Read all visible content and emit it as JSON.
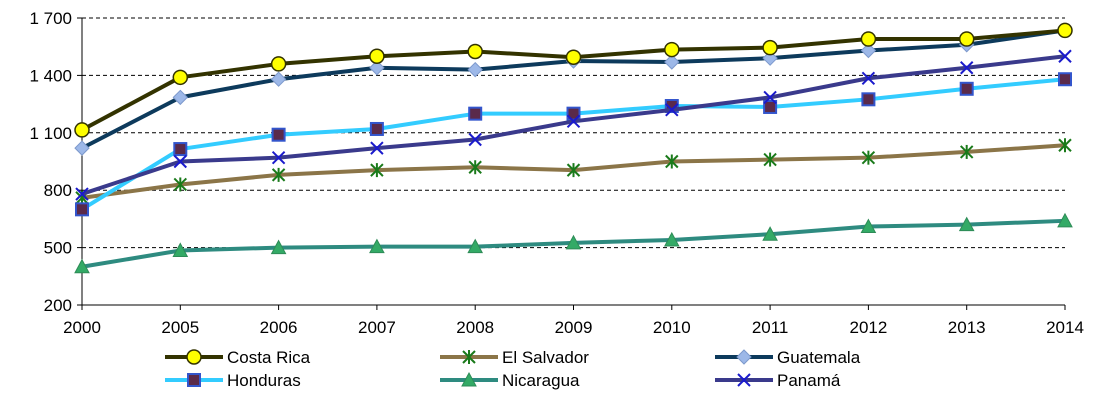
{
  "chart_data": {
    "type": "line",
    "title": "",
    "xlabel": "",
    "ylabel": "",
    "x": [
      "2000",
      "2005",
      "2006",
      "2007",
      "2008",
      "2009",
      "2010",
      "2011",
      "2012",
      "2013",
      "2014"
    ],
    "ylim": [
      200,
      1700
    ],
    "yticks": [
      200,
      500,
      800,
      1100,
      1400,
      1700
    ],
    "ytick_labels": [
      "200",
      "500",
      "800",
      "1 100",
      "1 400",
      "1 700"
    ],
    "grid": "horizontal dashed",
    "legend_position": "bottom",
    "series": [
      {
        "name": "Costa Rica",
        "color": "#333300",
        "marker": "circle",
        "marker_fill": "#ffff00",
        "values": [
          1115,
          1390,
          1460,
          1500,
          1525,
          1495,
          1535,
          1545,
          1590,
          1590,
          1635
        ]
      },
      {
        "name": "El Salvador",
        "color": "#8b7548",
        "marker": "asterisk",
        "marker_fill": "#1a7a1a",
        "values": [
          760,
          830,
          880,
          905,
          920,
          905,
          950,
          960,
          970,
          1000,
          1035
        ]
      },
      {
        "name": "Guatemala",
        "color": "#0d3a5c",
        "marker": "diamond",
        "marker_fill": "#9db8e8",
        "values": [
          1020,
          1285,
          1380,
          1440,
          1430,
          1475,
          1470,
          1490,
          1530,
          1560,
          1635
        ]
      },
      {
        "name": "Honduras",
        "color": "#33ccff",
        "marker": "square",
        "marker_fill": "#5a2a4a",
        "values": [
          700,
          1015,
          1090,
          1120,
          1200,
          1200,
          1240,
          1235,
          1275,
          1330,
          1380
        ]
      },
      {
        "name": "Nicaragua",
        "color": "#2e8b80",
        "marker": "triangle",
        "marker_fill": "#33aa66",
        "values": [
          400,
          485,
          500,
          505,
          505,
          525,
          540,
          570,
          610,
          620,
          640
        ]
      },
      {
        "name": "Panamá",
        "color": "#3a3a8c",
        "marker": "x",
        "marker_fill": "#1a1acc",
        "values": [
          780,
          950,
          970,
          1020,
          1065,
          1160,
          1220,
          1285,
          1385,
          1440,
          1500
        ]
      }
    ]
  }
}
